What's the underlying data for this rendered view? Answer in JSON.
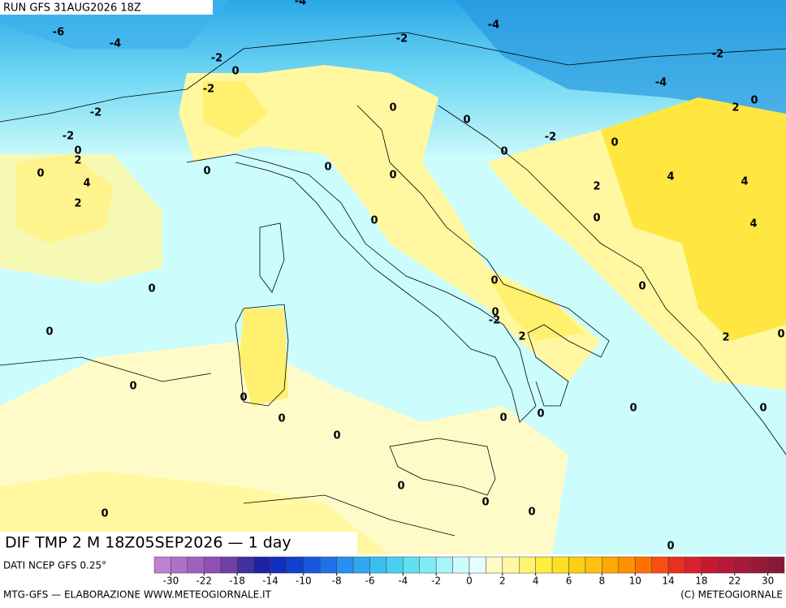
{
  "header": {
    "run": "RUN GFS 31AUG2026 18Z"
  },
  "map": {
    "title": "DIF TMP 2 M 18Z05SEP2026 — 1 day",
    "contour_labels": [
      -4,
      -6,
      -4,
      -2,
      -4,
      -2,
      0,
      -2,
      -4,
      -2,
      2,
      0,
      -2,
      0,
      0,
      -2,
      -2,
      0,
      0,
      2,
      0,
      0,
      0,
      0,
      0,
      4,
      4,
      4,
      2,
      2,
      0,
      0,
      4,
      0,
      0,
      0,
      0,
      -2,
      0,
      2,
      2,
      0,
      0,
      0,
      0,
      0,
      0,
      0,
      0,
      0,
      0,
      0,
      0,
      0,
      0
    ]
  },
  "colorbar": {
    "source": "DATI NCEP GFS 0.25°",
    "ticks": [
      -30,
      -22,
      -18,
      -14,
      -10,
      -8,
      -6,
      -4,
      -2,
      0,
      2,
      4,
      6,
      8,
      10,
      14,
      18,
      22,
      30
    ],
    "colors": [
      "#c080d0",
      "#b070c8",
      "#a060c0",
      "#9050b8",
      "#7040a8",
      "#4030a0",
      "#2020a8",
      "#1030c0",
      "#1040d0",
      "#1858e0",
      "#2070e8",
      "#2890f0",
      "#30a8f0",
      "#38c0f0",
      "#48d0f0",
      "#60e0f0",
      "#80ecf4",
      "#a8f4f8",
      "#ccfcfc",
      "#e8fefe",
      "#fffbc8",
      "#fff8a0",
      "#fff470",
      "#ffee40",
      "#ffe020",
      "#ffd010",
      "#ffc010",
      "#ffa800",
      "#ff9000",
      "#ff7000",
      "#f85010",
      "#e83020",
      "#d82030",
      "#c81830",
      "#b81838",
      "#a81838",
      "#981838",
      "#881838"
    ]
  },
  "footer": {
    "left": "MTG-GFS — ELABORAZIONE WWW.METEOGIORNALE.IT",
    "right": "(C) METEOGIORNALE"
  }
}
